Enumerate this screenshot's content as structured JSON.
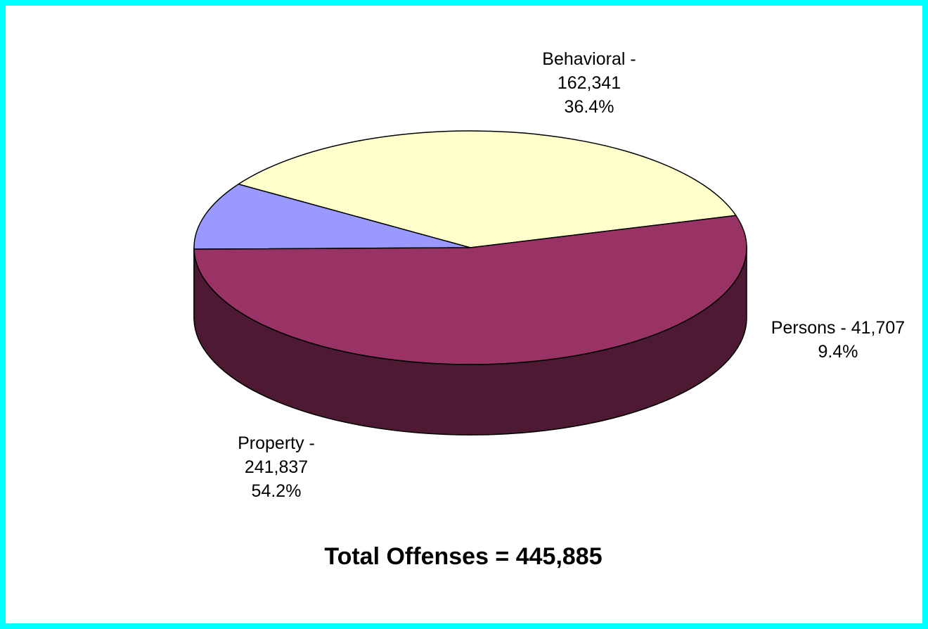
{
  "chart_data": {
    "type": "pie",
    "style": "3d",
    "slices": [
      {
        "name": "Behavioral",
        "value": 162341,
        "percent": 36.4,
        "color": "#FFFFCC",
        "side_color": "#808066",
        "label_lines": [
          "Behavioral -",
          "162,341",
          "36.4%"
        ]
      },
      {
        "name": "Persons",
        "value": 41707,
        "percent": 9.4,
        "color": "#9999FF",
        "side_color": "#4D4D80",
        "label_lines": [
          "Persons - 41,707",
          "9.4%"
        ]
      },
      {
        "name": "Property",
        "value": 241837,
        "percent": 54.2,
        "color": "#993366",
        "side_color": "#4D1933",
        "label_lines": [
          "Property -",
          "241,837",
          "54.2%"
        ]
      }
    ],
    "total_label": "Total Offenses = 445,885",
    "frame_color": "#00FFFF",
    "legend": "none"
  }
}
